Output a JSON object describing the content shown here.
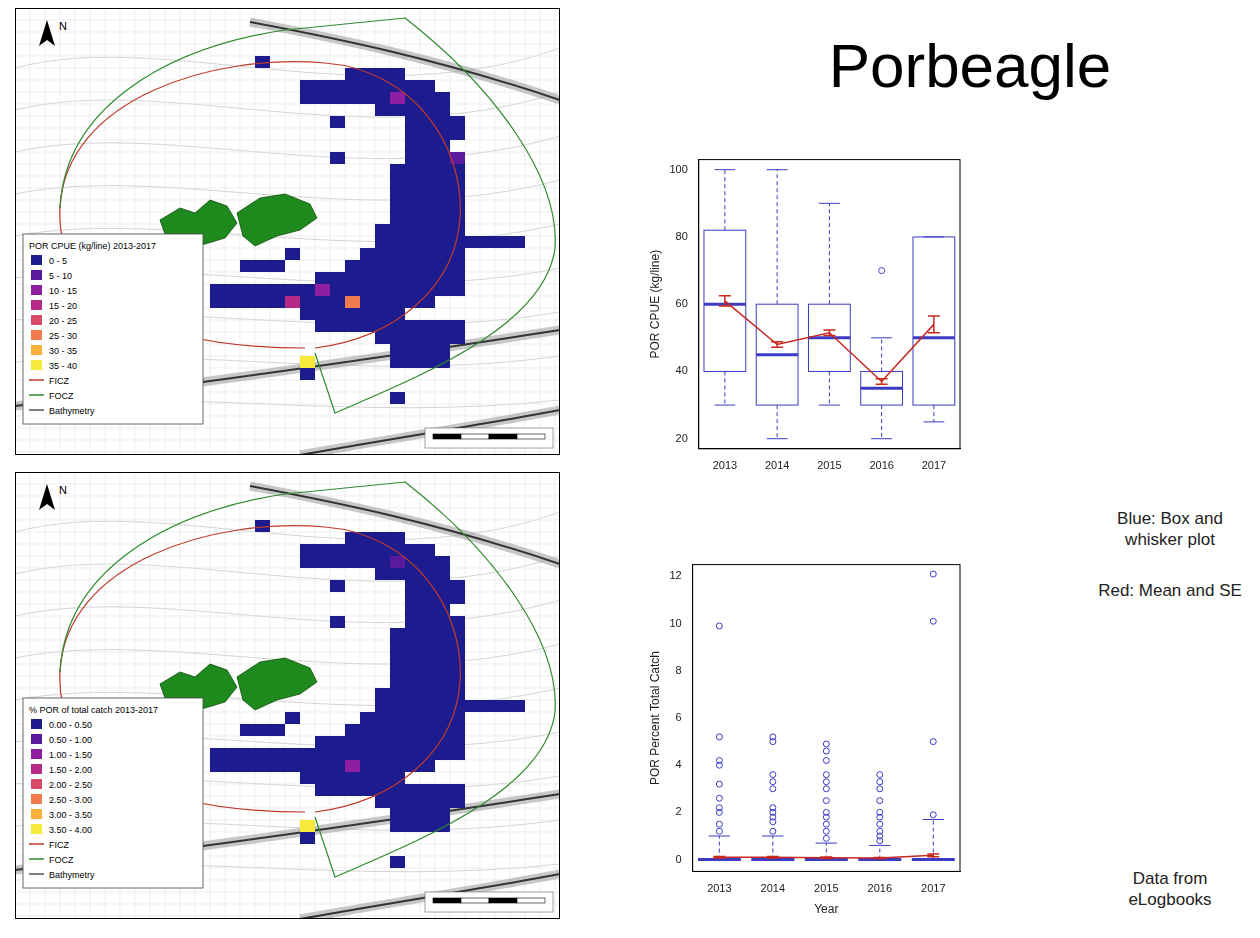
{
  "title": "Porbeagle",
  "notes": [
    "Blue: Box and whisker plot",
    "Red: Mean and SE",
    "Data from eLogbooks"
  ],
  "maps": [
    {
      "north": "N",
      "legend_title": "POR CPUE (kg/line) 2013-2017",
      "bins": [
        "0 - 5",
        "5 - 10",
        "10 - 15",
        "15 - 20",
        "20 - 25",
        "25 - 30",
        "30 - 35",
        "35 - 40"
      ],
      "colors": [
        "#1c1c8f",
        "#5b1a9c",
        "#8e1fa0",
        "#b52a86",
        "#d94b69",
        "#f07b4e",
        "#f9b13c",
        "#f8e83a"
      ],
      "lines": [
        {
          "name": "FICZ",
          "color": "#c0392b"
        },
        {
          "name": "FOCZ",
          "color": "#2e8b2e"
        },
        {
          "name": "Bathymetry",
          "color": "#555555"
        }
      ],
      "cells": [
        [
          4,
          16,
          16,
          0
        ],
        [
          5,
          22,
          25,
          0
        ],
        [
          6,
          19,
          27,
          0
        ],
        [
          7,
          19,
          28,
          0
        ],
        [
          8,
          24,
          28,
          0
        ],
        [
          9,
          21,
          21,
          0
        ],
        [
          9,
          26,
          29,
          0
        ],
        [
          10,
          26,
          29,
          0
        ],
        [
          11,
          26,
          28,
          0
        ],
        [
          12,
          21,
          21,
          0
        ],
        [
          12,
          26,
          29,
          0
        ],
        [
          13,
          25,
          29,
          0
        ],
        [
          14,
          25,
          29,
          0
        ],
        [
          15,
          25,
          29,
          0
        ],
        [
          16,
          25,
          29,
          0
        ],
        [
          17,
          25,
          29,
          0
        ],
        [
          18,
          24,
          29,
          0
        ],
        [
          19,
          24,
          33,
          0
        ],
        [
          20,
          18,
          18,
          0
        ],
        [
          20,
          23,
          29,
          0
        ],
        [
          21,
          15,
          17,
          0
        ],
        [
          21,
          22,
          29,
          0
        ],
        [
          22,
          20,
          29,
          0
        ],
        [
          23,
          13,
          29,
          0
        ],
        [
          24,
          13,
          27,
          0
        ],
        [
          25,
          19,
          25,
          0
        ],
        [
          26,
          20,
          29,
          0
        ],
        [
          27,
          24,
          29,
          0
        ],
        [
          28,
          25,
          28,
          0
        ],
        [
          29,
          25,
          28,
          0
        ],
        [
          30,
          19,
          19,
          0
        ],
        [
          32,
          25,
          25,
          0
        ],
        [
          7,
          25,
          25,
          2
        ],
        [
          12,
          29,
          29,
          1
        ],
        [
          23,
          20,
          20,
          2
        ],
        [
          24,
          18,
          18,
          3
        ],
        [
          24,
          22,
          22,
          5
        ],
        [
          29,
          19,
          19,
          7
        ]
      ]
    },
    {
      "north": "N",
      "legend_title": "% POR of total catch 2013-2017",
      "bins": [
        "0.00 - 0.50",
        "0.50 - 1.00",
        "1.00 - 1.50",
        "1.50 - 2.00",
        "2.00 - 2.50",
        "2.50 - 3.00",
        "3.00 - 3.50",
        "3.50 - 4.00"
      ],
      "colors": [
        "#1c1c8f",
        "#5b1a9c",
        "#8e1fa0",
        "#b52a86",
        "#d94b69",
        "#f07b4e",
        "#f9b13c",
        "#f8e83a"
      ],
      "lines": [
        {
          "name": "FICZ",
          "color": "#c0392b"
        },
        {
          "name": "FOCZ",
          "color": "#2e8b2e"
        },
        {
          "name": "Bathymetry",
          "color": "#555555"
        }
      ],
      "cells": [
        [
          4,
          16,
          16,
          0
        ],
        [
          5,
          22,
          25,
          0
        ],
        [
          6,
          19,
          27,
          0
        ],
        [
          7,
          19,
          28,
          0
        ],
        [
          8,
          24,
          28,
          0
        ],
        [
          9,
          21,
          21,
          0
        ],
        [
          9,
          26,
          29,
          0
        ],
        [
          10,
          26,
          29,
          0
        ],
        [
          11,
          26,
          28,
          0
        ],
        [
          12,
          21,
          21,
          0
        ],
        [
          12,
          26,
          29,
          0
        ],
        [
          13,
          25,
          29,
          0
        ],
        [
          14,
          25,
          29,
          0
        ],
        [
          15,
          25,
          29,
          0
        ],
        [
          16,
          25,
          29,
          0
        ],
        [
          17,
          25,
          29,
          0
        ],
        [
          18,
          24,
          29,
          0
        ],
        [
          19,
          24,
          33,
          0
        ],
        [
          20,
          18,
          18,
          0
        ],
        [
          20,
          23,
          29,
          0
        ],
        [
          21,
          15,
          17,
          0
        ],
        [
          21,
          22,
          29,
          0
        ],
        [
          22,
          20,
          29,
          0
        ],
        [
          23,
          13,
          29,
          0
        ],
        [
          24,
          13,
          27,
          0
        ],
        [
          25,
          19,
          25,
          0
        ],
        [
          26,
          20,
          29,
          0
        ],
        [
          27,
          24,
          29,
          0
        ],
        [
          28,
          25,
          28,
          0
        ],
        [
          29,
          25,
          28,
          0
        ],
        [
          30,
          19,
          19,
          0
        ],
        [
          32,
          25,
          25,
          0
        ],
        [
          7,
          25,
          25,
          1
        ],
        [
          24,
          22,
          22,
          2
        ],
        [
          29,
          19,
          19,
          7
        ]
      ]
    }
  ],
  "chart_data": [
    {
      "type": "box",
      "ylabel": "POR CPUE (kg/line)",
      "categories": [
        "2013",
        "2014",
        "2015",
        "2016",
        "2017"
      ],
      "ylim": [
        17,
        103
      ],
      "yticks": [
        20,
        40,
        60,
        80,
        100
      ],
      "grid": false,
      "series": [
        {
          "type": "box",
          "color": "#3b3bc4",
          "values": [
            {
              "min": 30,
              "q1": 40,
              "median": 60,
              "q3": 82,
              "max": 100,
              "outliers": []
            },
            {
              "min": 20,
              "q1": 30,
              "median": 45,
              "q3": 60,
              "max": 100,
              "outliers": []
            },
            {
              "min": 30,
              "q1": 40,
              "median": 50,
              "q3": 60,
              "max": 90,
              "outliers": []
            },
            {
              "min": 20,
              "q1": 30,
              "median": 35,
              "q3": 40,
              "max": 50,
              "outliers": [
                70
              ]
            },
            {
              "min": 25,
              "q1": 30,
              "median": 50,
              "q3": 80,
              "max": 80,
              "outliers": []
            }
          ]
        },
        {
          "type": "line",
          "color": "#c8281e",
          "values": [
            61,
            48,
            51.5,
            37,
            54
          ],
          "se": [
            1.5,
            0.8,
            0.8,
            0.8,
            2.5
          ]
        }
      ]
    },
    {
      "type": "box",
      "ylabel": "POR Percent Total Catch",
      "xlabel": "Year",
      "categories": [
        "2013",
        "2014",
        "2015",
        "2016",
        "2017"
      ],
      "ylim": [
        -0.5,
        12.5
      ],
      "yticks": [
        0,
        2,
        4,
        6,
        8,
        10,
        12
      ],
      "grid": false,
      "series": [
        {
          "type": "box",
          "color": "#3b3bc4",
          "values": [
            {
              "min": 0,
              "q1": 0,
              "median": 0,
              "q3": 0,
              "max": 1,
              "outliers": [
                1.2,
                1.5,
                2,
                2.2,
                2.6,
                3.2,
                4,
                4.2,
                5.2,
                9.9
              ]
            },
            {
              "min": 0,
              "q1": 0,
              "median": 0,
              "q3": 0,
              "max": 1,
              "outliers": [
                1.2,
                1.6,
                1.8,
                2,
                2.2,
                3,
                3.3,
                3.6,
                5,
                5.2
              ]
            },
            {
              "min": 0,
              "q1": 0,
              "median": 0,
              "q3": 0,
              "max": 0.7,
              "outliers": [
                0.9,
                1.2,
                1.5,
                1.8,
                2,
                2.5,
                3,
                3.3,
                3.6,
                4.2,
                4.6,
                4.9
              ]
            },
            {
              "min": 0,
              "q1": 0,
              "median": 0,
              "q3": 0,
              "max": 0.6,
              "outliers": [
                0.8,
                1,
                1.2,
                1.5,
                1.8,
                2,
                2.5,
                3,
                3.3,
                3.6
              ]
            },
            {
              "min": 0,
              "q1": 0,
              "median": 0,
              "q3": 0,
              "max": 1.7,
              "outliers": [
                1.9,
                5,
                10.1,
                12.1
              ]
            }
          ]
        },
        {
          "type": "line",
          "color": "#c8281e",
          "values": [
            0.1,
            0.1,
            0.08,
            0.07,
            0.18
          ],
          "se": [
            0.03,
            0.03,
            0.03,
            0.02,
            0.06
          ]
        }
      ]
    }
  ]
}
